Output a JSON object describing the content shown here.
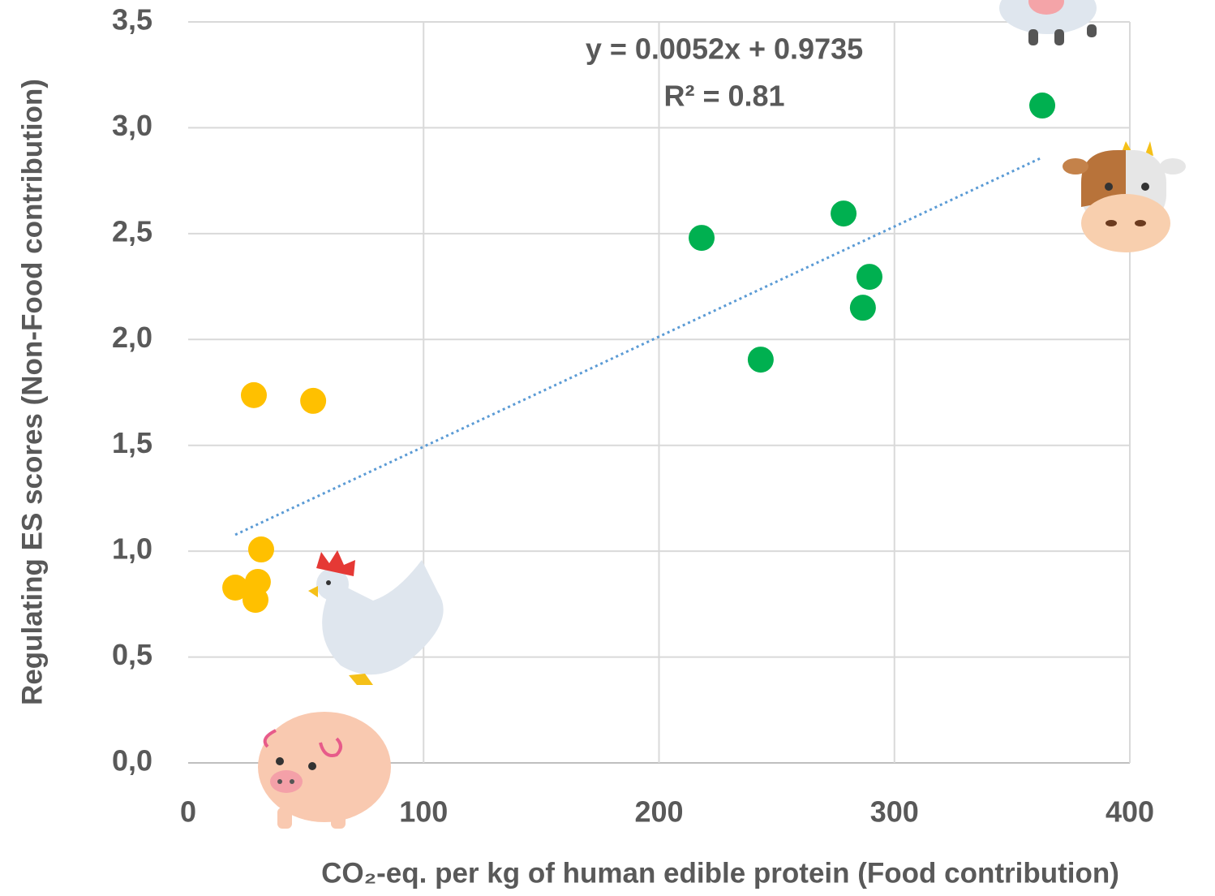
{
  "chart_data": {
    "type": "scatter",
    "x_label": "CO₂-eq. per kg of human edible protein (Food contribution)",
    "y_label": "Regulating ES scores (Non-Food contribution)",
    "annotations": [
      "y = 0.0052x + 0.9735",
      "R² = 0.81"
    ],
    "trendline": {
      "slope": 0.0052,
      "intercept": 0.9735,
      "style": "dotted",
      "color": "#5b9bd5"
    },
    "series": [
      {
        "color": "#ffc000",
        "x": [
          27.9,
          53.1,
          31.0,
          20.0,
          29.6,
          28.6
        ],
        "values": [
          1.737,
          1.71,
          1.008,
          0.828,
          0.855,
          0.77
        ]
      },
      {
        "color": "#00b050",
        "x": [
          218.1,
          278.4,
          289.4,
          286.6,
          243.2,
          362.8
        ],
        "values": [
          2.48,
          2.595,
          2.296,
          2.15,
          1.905,
          3.105
        ]
      }
    ],
    "xlim": [
      0,
      400
    ],
    "xticks": [
      0,
      100,
      200,
      300,
      400
    ],
    "ylim": [
      0,
      3.5
    ],
    "yticks": [
      {
        "value": 0,
        "label": "0,0"
      },
      {
        "value": 0.5,
        "label": "0,5"
      },
      {
        "value": 1,
        "label": "1,0"
      },
      {
        "value": 1.5,
        "label": "1,5"
      },
      {
        "value": 2,
        "label": "2,0"
      },
      {
        "value": 2.5,
        "label": "2,5"
      },
      {
        "value": 3,
        "label": "3,0"
      },
      {
        "value": 3.5,
        "label": "3,5"
      }
    ],
    "grid": true
  }
}
